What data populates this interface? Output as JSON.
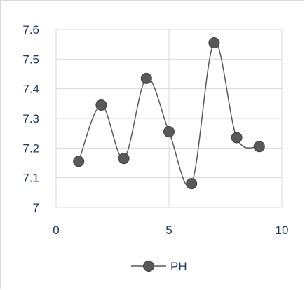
{
  "chart_data": {
    "type": "scatter",
    "title": "",
    "xlabel": "",
    "ylabel": "",
    "xlim": [
      0,
      10
    ],
    "ylim": [
      7,
      7.6
    ],
    "x_ticks": [
      "0",
      "5",
      "10"
    ],
    "y_ticks": [
      "7",
      "7.1",
      "7.2",
      "7.3",
      "7.4",
      "7.5",
      "7.6"
    ],
    "grid": true,
    "smoothed_lines": true,
    "legend_position": "bottom",
    "series": [
      {
        "name": "PH",
        "color": "#595959",
        "x": [
          1,
          2,
          3,
          4,
          5,
          6,
          7,
          8,
          9
        ],
        "y": [
          7.155,
          7.345,
          7.165,
          7.435,
          7.255,
          7.08,
          7.555,
          7.235,
          7.205
        ]
      }
    ]
  }
}
